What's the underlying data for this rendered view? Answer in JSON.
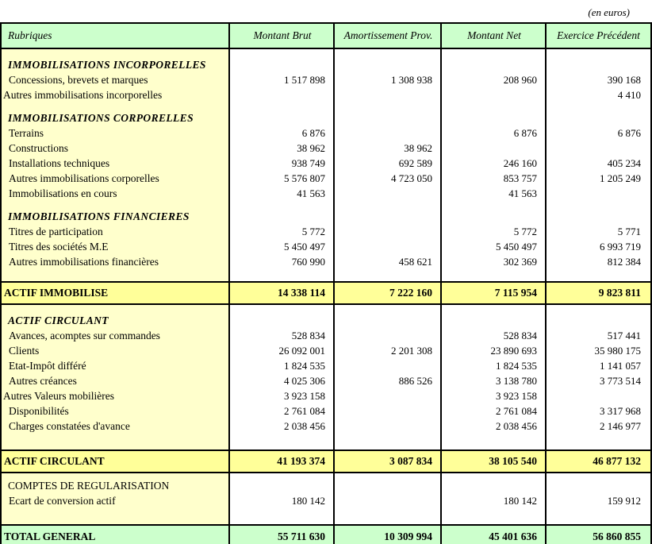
{
  "unit_note": "(en euros)",
  "palette": {
    "header_green": "#CCFFCC",
    "label_cream": "#FFFFCC",
    "total_yellow": "#FFFF99",
    "cell_white": "#FFFFFF",
    "border_black": "#000000"
  },
  "header": {
    "columns": [
      "Rubriques",
      "Montant Brut",
      "Amortissement Prov.",
      "Montant Net",
      "Exercice Précédent"
    ]
  },
  "block1": {
    "rows": [
      {
        "type": "section",
        "label": "IMMOBILISATIONS INCORPORELLES"
      },
      {
        "type": "item",
        "label": "Concessions, brevets et marques",
        "values": [
          "1 517 898",
          "1 308 938",
          "208 960",
          "390 168"
        ]
      },
      {
        "type": "item",
        "flush": true,
        "label": "Autres immobilisations incorporelles",
        "values": [
          "",
          "",
          "",
          "4 410"
        ]
      },
      {
        "type": "section",
        "label": "IMMOBILISATIONS CORPORELLES"
      },
      {
        "type": "item",
        "label": "Terrains",
        "values": [
          "6 876",
          "",
          "6 876",
          "6 876"
        ]
      },
      {
        "type": "item",
        "label": "Constructions",
        "values": [
          "38 962",
          "38 962",
          "",
          ""
        ]
      },
      {
        "type": "item",
        "label": "Installations techniques",
        "values": [
          "938 749",
          "692 589",
          "246 160",
          "405 234"
        ]
      },
      {
        "type": "item",
        "label": "Autres immobilisations corporelles",
        "values": [
          "5 576 807",
          "4 723 050",
          "853 757",
          "1 205 249"
        ]
      },
      {
        "type": "item",
        "label": "Immobilisations en cours",
        "values": [
          "41 563",
          "",
          "41 563",
          ""
        ]
      },
      {
        "type": "section",
        "label": "IMMOBILISATIONS FINANCIERES"
      },
      {
        "type": "item",
        "label": "Titres de participation",
        "values": [
          "5 772",
          "",
          "5 772",
          "5 771"
        ]
      },
      {
        "type": "item",
        "label": "Titres des sociétés M.E",
        "values": [
          "5 450 497",
          "",
          "5 450 497",
          "6 993 719"
        ]
      },
      {
        "type": "item",
        "label": "Autres immobilisations financières",
        "values": [
          "760 990",
          "458 621",
          "302 369",
          "812 384"
        ]
      }
    ]
  },
  "total1": {
    "label": "ACTIF IMMOBILISE",
    "values": [
      "14 338 114",
      "7 222 160",
      "7 115 954",
      "9 823 811"
    ]
  },
  "block2": {
    "rows": [
      {
        "type": "section",
        "label": "ACTIF CIRCULANT"
      },
      {
        "type": "item",
        "label": "Avances, acomptes sur commandes",
        "values": [
          "528 834",
          "",
          "528 834",
          "517 441"
        ]
      },
      {
        "type": "item",
        "label": "Clients",
        "values": [
          "26 092 001",
          "2 201 308",
          "23 890 693",
          "35 980 175"
        ]
      },
      {
        "type": "item",
        "label": "Etat-Impôt différé",
        "values": [
          "1 824 535",
          "",
          "1 824 535",
          "1 141 057"
        ]
      },
      {
        "type": "item",
        "label": "Autres créances",
        "values": [
          "4 025 306",
          "886 526",
          "3 138 780",
          "3 773 514"
        ]
      },
      {
        "type": "item",
        "flush": true,
        "label": "Autres Valeurs  mobilières",
        "values": [
          "3 923 158",
          "",
          "3 923 158",
          ""
        ]
      },
      {
        "type": "item",
        "label": "Disponibilités",
        "values": [
          "2 761 084",
          "",
          "2 761 084",
          "3 317 968"
        ]
      },
      {
        "type": "item",
        "label": "Charges constatées d'avance",
        "values": [
          "2 038 456",
          "",
          "2 038 456",
          "2 146 977"
        ]
      }
    ]
  },
  "total2": {
    "label": "ACTIF CIRCULANT",
    "values": [
      "41 193 374",
      "3 087 834",
      "38 105 540",
      "46 877 132"
    ]
  },
  "block3": {
    "rows": [
      {
        "type": "subsection",
        "label": "COMPTES DE REGULARISATION"
      },
      {
        "type": "item",
        "label": "Ecart de conversion actif",
        "values": [
          "180 142",
          "",
          "180 142",
          "159 912"
        ]
      }
    ]
  },
  "total3": {
    "label": "TOTAL GENERAL",
    "values": [
      "55 711 630",
      "10 309 994",
      "45 401 636",
      "56 860 855"
    ]
  }
}
